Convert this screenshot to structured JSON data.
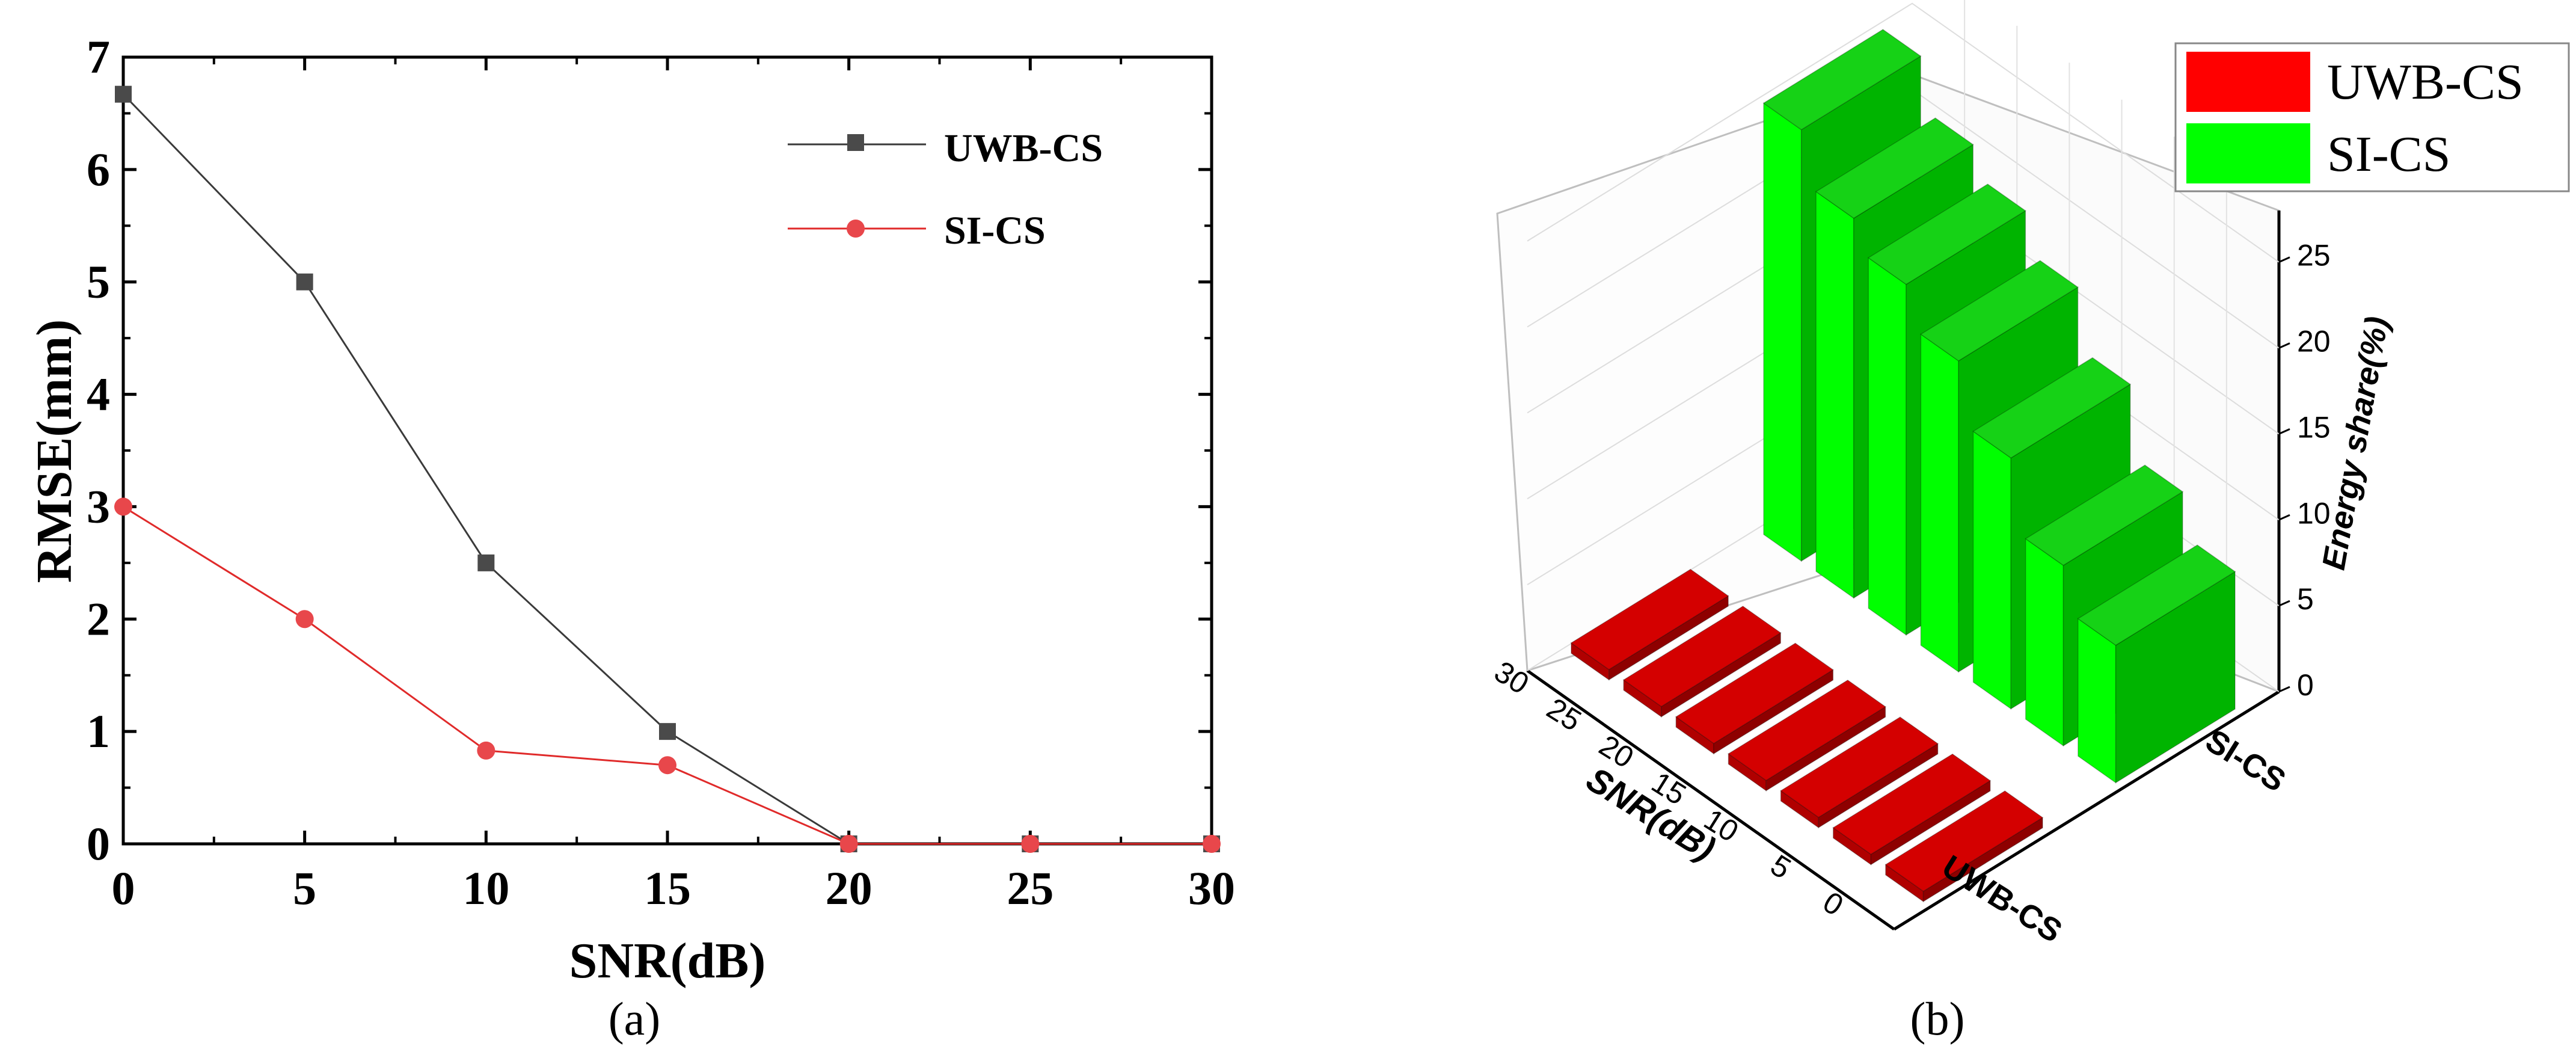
{
  "panels": {
    "a": {
      "caption": "(a)"
    },
    "b": {
      "caption": "(b)"
    }
  },
  "colors": {
    "uwb_line": "#3a3a3a",
    "uwb_marker": "#4a4a4a",
    "si_line": "#e02a2a",
    "si_marker": "#e8474b",
    "bar_red_top": "#d40000",
    "bar_red_front": "#b00000",
    "bar_red_side": "#8e0000",
    "bar_green_top": "#16d216",
    "bar_green_front": "#00ff00",
    "bar_green_side": "#00b400",
    "legend_red": "#ff0000",
    "legend_green": "#00ff00"
  },
  "chart_data": [
    {
      "type": "line",
      "title": "",
      "xlabel": "SNR(dB)",
      "ylabel": "RMSE(mm)",
      "xlim": [
        0,
        30
      ],
      "ylim": [
        0,
        7
      ],
      "xticks": [
        "0",
        "5",
        "10",
        "15",
        "20",
        "25",
        "30"
      ],
      "yticks": [
        "0",
        "1",
        "2",
        "3",
        "4",
        "5",
        "6",
        "7"
      ],
      "x": [
        0,
        5,
        10,
        15,
        20,
        25,
        30
      ],
      "series": [
        {
          "name": "UWB-CS",
          "marker": "square",
          "values": [
            6.67,
            5.0,
            2.5,
            1.0,
            0.0,
            0.0,
            0.0
          ]
        },
        {
          "name": "SI-CS",
          "marker": "circle",
          "values": [
            3.0,
            2.0,
            0.83,
            0.7,
            0.0,
            0.0,
            0.0
          ]
        }
      ],
      "legend": "top-right",
      "grid": false
    },
    {
      "type": "bar",
      "subtype": "3d-bar",
      "title": "",
      "xlabel": "SNR(dB)",
      "zlabel": "Energy share(%)",
      "categories": [
        "0",
        "5",
        "10",
        "15",
        "20",
        "25",
        "30"
      ],
      "groups": [
        "UWB-CS",
        "SI-CS"
      ],
      "zlim": [
        0,
        28
      ],
      "zticks": [
        "0",
        "5",
        "10",
        "15",
        "20",
        "25"
      ],
      "series": [
        {
          "name": "UWB-CS",
          "values": [
            0.6,
            0.6,
            0.6,
            0.6,
            0.6,
            0.6,
            0.6
          ]
        },
        {
          "name": "SI-CS",
          "values": [
            8,
            10.5,
            14.6,
            18.1,
            20.4,
            22.1,
            25.1
          ]
        }
      ],
      "legend": "top-right",
      "grid": true
    }
  ]
}
